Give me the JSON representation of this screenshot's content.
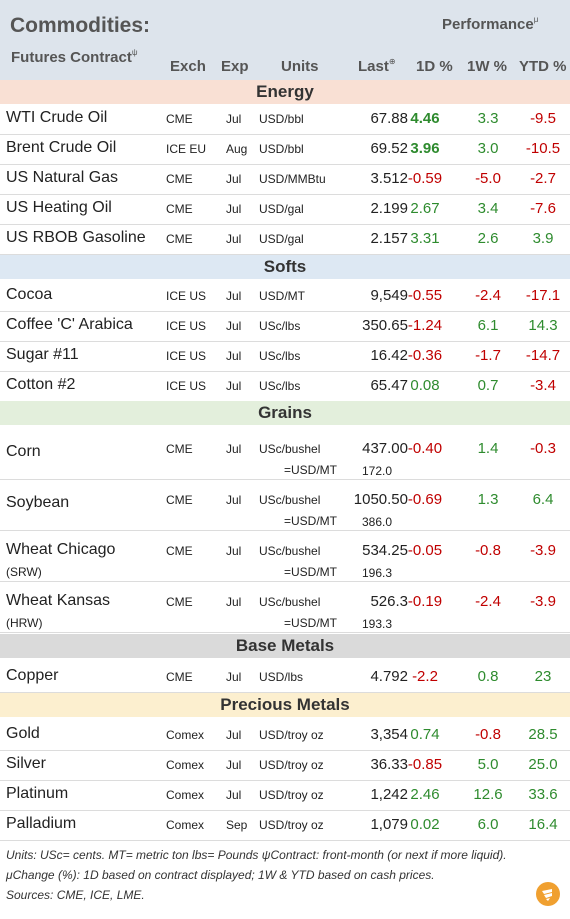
{
  "header": {
    "title": "Commodities:",
    "subtitle": "Futures Contract",
    "subtitle_mark": "ψ",
    "performance": "Performance",
    "performance_mark": "μ",
    "columns": {
      "exch": "Exch",
      "exp": "Exp",
      "units": "Units",
      "last": "Last",
      "last_mark": "⊕",
      "d1": "1D %",
      "w1": "1W %",
      "ytd": "YTD %"
    }
  },
  "sections": {
    "energy": {
      "label": "Energy",
      "color": "#f9e0d4"
    },
    "softs": {
      "label": "Softs",
      "color": "#dde8f3"
    },
    "grains": {
      "label": "Grains",
      "color": "#e3efdc"
    },
    "base": {
      "label": "Base Metals",
      "color": "#dadada"
    },
    "precious": {
      "label": "Precious Metals",
      "color": "#fcefcf"
    }
  },
  "rows": {
    "wti": {
      "name": "WTI Crude Oil",
      "exch": "CME",
      "exp": "Jul",
      "units": "USD/bbl",
      "last": "67.88",
      "d1": "4.46",
      "w1": "3.3",
      "ytd": "-9.5"
    },
    "brent": {
      "name": "Brent Crude Oil",
      "exch": "ICE EU",
      "exp": "Aug",
      "units": "USD/bbl",
      "last": "69.52",
      "d1": "3.96",
      "w1": "3.0",
      "ytd": "-10.5"
    },
    "natgas": {
      "name": "US Natural Gas",
      "exch": "CME",
      "exp": "Jul",
      "units": "USD/MMBtu",
      "last": "3.512",
      "d1": "-0.59",
      "w1": "-5.0",
      "ytd": "-2.7"
    },
    "heating": {
      "name": "US Heating Oil",
      "exch": "CME",
      "exp": "Jul",
      "units": "USD/gal",
      "last": "2.199",
      "d1": "2.67",
      "w1": "3.4",
      "ytd": "-7.6"
    },
    "rbob": {
      "name": "US RBOB Gasoline",
      "exch": "CME",
      "exp": "Jul",
      "units": "USD/gal",
      "last": "2.157",
      "d1": "3.31",
      "w1": "2.6",
      "ytd": "3.9"
    },
    "cocoa": {
      "name": "Cocoa",
      "exch": "ICE US",
      "exp": "Jul",
      "units": "USD/MT",
      "last": "9,549",
      "d1": "-0.55",
      "w1": "-2.4",
      "ytd": "-17.1"
    },
    "coffee": {
      "name": "Coffee 'C' Arabica",
      "exch": "ICE US",
      "exp": "Jul",
      "units": "USc/lbs",
      "last": "350.65",
      "d1": "-1.24",
      "w1": "6.1",
      "ytd": "14.3"
    },
    "sugar": {
      "name": "Sugar #11",
      "exch": "ICE US",
      "exp": "Jul",
      "units": "USc/lbs",
      "last": "16.42",
      "d1": "-0.36",
      "w1": "-1.7",
      "ytd": "-14.7"
    },
    "cotton": {
      "name": "Cotton #2",
      "exch": "ICE US",
      "exp": "Jul",
      "units": "USc/lbs",
      "last": "65.47",
      "d1": "0.08",
      "w1": "0.7",
      "ytd": "-3.4"
    },
    "corn": {
      "name": "Corn",
      "exch": "CME",
      "exp": "Jul",
      "units": "USc/bushel",
      "last": "437.00",
      "d1": "-0.40",
      "w1": "1.4",
      "ytd": "-0.3",
      "sub_units": "=USD/MT",
      "sub_last": "172.0"
    },
    "soybean": {
      "name": "Soybean",
      "exch": "CME",
      "exp": "Jul",
      "units": "USc/bushel",
      "last": "1050.50",
      "d1": "-0.69",
      "w1": "1.3",
      "ytd": "6.4",
      "sub_units": "=USD/MT",
      "sub_last": "386.0"
    },
    "wheatc": {
      "name": "Wheat Chicago",
      "name2": "(SRW)",
      "exch": "CME",
      "exp": "Jul",
      "units": "USc/bushel",
      "last": "534.25",
      "d1": "-0.05",
      "w1": "-0.8",
      "ytd": "-3.9",
      "sub_units": "=USD/MT",
      "sub_last": "196.3"
    },
    "wheatk": {
      "name": "Wheat Kansas",
      "name2": "(HRW)",
      "exch": "CME",
      "exp": "Jul",
      "units": "USc/bushel",
      "last": "526.3",
      "d1": "-0.19",
      "w1": "-2.4",
      "ytd": "-3.9",
      "sub_units": "=USD/MT",
      "sub_last": "193.3"
    },
    "copper": {
      "name": "Copper",
      "exch": "CME",
      "exp": "Jul",
      "units": "USD/lbs",
      "last": "4.792",
      "d1": "-2.2",
      "w1": "0.8",
      "ytd": "23"
    },
    "gold": {
      "name": "Gold",
      "exch": "Comex",
      "exp": "Jul",
      "units": "USD/troy oz",
      "last": "3,354",
      "d1": "0.74",
      "w1": "-0.8",
      "ytd": "28.5"
    },
    "silver": {
      "name": "Silver",
      "exch": "Comex",
      "exp": "Jul",
      "units": "USD/troy oz",
      "last": "36.33",
      "d1": "-0.85",
      "w1": "5.0",
      "ytd": "25.0"
    },
    "platinum": {
      "name": "Platinum",
      "exch": "Comex",
      "exp": "Jul",
      "units": "USD/troy oz",
      "last": "1,242",
      "d1": "2.46",
      "w1": "12.6",
      "ytd": "33.6"
    },
    "palladium": {
      "name": "Palladium",
      "exch": "Comex",
      "exp": "Sep",
      "units": "USD/troy oz",
      "last": "1,079",
      "d1": "0.02",
      "w1": "6.0",
      "ytd": "16.4"
    }
  },
  "footer": {
    "line1": "Units: USc= cents.   MT= metric ton    lbs= Pounds   ψContract: front-month (or next if more liquid).",
    "line2": "μChange (%): 1D based on contract displayed; 1W & YTD based on cash prices.",
    "line3": "Sources: CME, ICE, LME."
  },
  "colors": {
    "negative": "#c00000",
    "positive": "#2e8b2e",
    "header_bg": "#dde4ec",
    "logo": "#f0a030"
  }
}
